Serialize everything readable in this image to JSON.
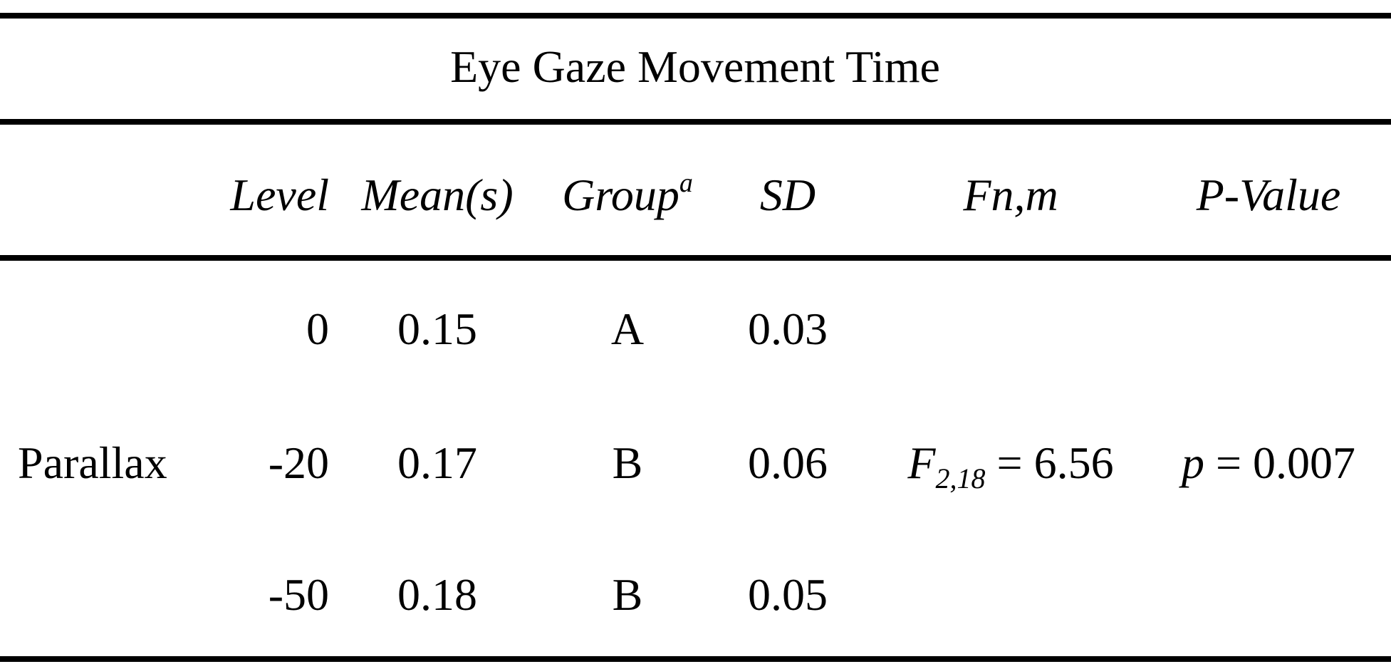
{
  "table": {
    "title": "Eye Gaze Movement Time",
    "columns": [
      {
        "text": "Level"
      },
      {
        "text": "Mean(s)"
      },
      {
        "text": "Group",
        "sup": "a"
      },
      {
        "text": "SD"
      },
      {
        "text": "Fn,m"
      },
      {
        "text": "P-Value"
      }
    ],
    "factor": "Parallax",
    "rows": [
      [
        "0",
        "0.15",
        "A",
        "0.03"
      ],
      [
        "-20",
        "0.17",
        "B",
        "0.06"
      ],
      [
        "-50",
        "0.18",
        "B",
        "0.05"
      ]
    ],
    "f_test": {
      "symbol": "F",
      "subscript": "2,18",
      "text": "= 6.56"
    },
    "p_test": {
      "symbol": "p",
      "text": "= 0.007"
    }
  }
}
